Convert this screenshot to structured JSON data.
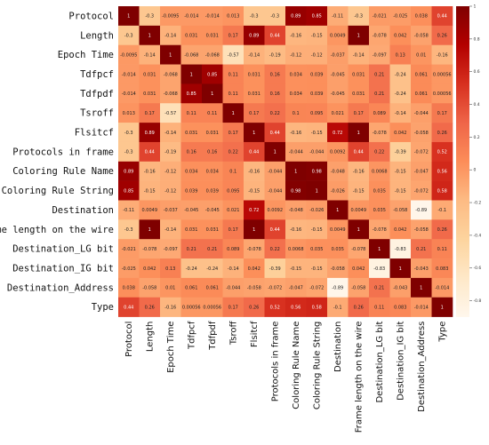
{
  "chart_data": {
    "type": "heatmap",
    "title": "",
    "labels": [
      "Protocol",
      "Length",
      "Epoch Time",
      "Tdfpcf",
      "Tdfpdf",
      "Tsroff",
      "Flsitcf",
      "Protocols in frame",
      "Coloring Rule Name",
      "Coloring Rule String",
      "Destination",
      "Frame length on the wire",
      "Destination_LG bit",
      "Destination_IG bit",
      "Destination_Address",
      "Type"
    ],
    "matrix": [
      [
        1,
        -0.3,
        -0.0095,
        -0.014,
        -0.014,
        0.013,
        -0.3,
        -0.3,
        0.89,
        0.85,
        -0.11,
        -0.3,
        -0.021,
        -0.025,
        0.038,
        0.44
      ],
      [
        -0.3,
        1,
        -0.14,
        0.031,
        0.031,
        0.17,
        0.89,
        0.44,
        -0.16,
        -0.15,
        0.0049,
        1,
        -0.078,
        0.042,
        -0.058,
        0.26
      ],
      [
        -0.0095,
        -0.14,
        1,
        -0.068,
        -0.068,
        -0.57,
        -0.14,
        -0.19,
        -0.12,
        -0.12,
        -0.037,
        -0.14,
        -0.097,
        0.13,
        0.01,
        -0.16
      ],
      [
        -0.014,
        0.031,
        -0.068,
        1,
        0.85,
        0.11,
        0.031,
        0.16,
        0.034,
        0.039,
        -0.045,
        0.031,
        0.21,
        -0.24,
        0.061,
        0.00056
      ],
      [
        -0.014,
        0.031,
        -0.068,
        0.85,
        1,
        0.11,
        0.031,
        0.16,
        0.034,
        0.039,
        -0.045,
        0.031,
        0.21,
        -0.24,
        0.061,
        0.00056
      ],
      [
        0.013,
        0.17,
        -0.57,
        0.11,
        0.11,
        1,
        0.17,
        0.22,
        0.1,
        0.095,
        0.021,
        0.17,
        0.089,
        -0.14,
        -0.044,
        0.17
      ],
      [
        -0.3,
        0.89,
        -0.14,
        0.031,
        0.031,
        0.17,
        1,
        0.44,
        -0.16,
        -0.15,
        0.72,
        1,
        -0.078,
        0.042,
        -0.058,
        0.26
      ],
      [
        -0.3,
        0.44,
        -0.19,
        0.16,
        0.16,
        0.22,
        0.44,
        1,
        -0.044,
        -0.044,
        0.0092,
        0.44,
        0.22,
        -0.39,
        -0.072,
        0.52
      ],
      [
        0.89,
        -0.16,
        -0.12,
        0.034,
        0.034,
        0.1,
        -0.16,
        -0.044,
        1,
        0.98,
        -0.048,
        -0.16,
        0.0068,
        -0.15,
        -0.047,
        0.56
      ],
      [
        0.85,
        -0.15,
        -0.12,
        0.039,
        0.039,
        0.095,
        -0.15,
        -0.044,
        0.98,
        1,
        -0.026,
        -0.15,
        0.035,
        -0.15,
        -0.072,
        0.58
      ],
      [
        -0.11,
        0.0049,
        -0.037,
        -0.045,
        -0.045,
        0.021,
        0.72,
        0.0092,
        -0.048,
        -0.026,
        1,
        0.0049,
        0.035,
        -0.058,
        -0.89,
        -0.1
      ],
      [
        -0.3,
        1,
        -0.14,
        0.031,
        0.031,
        0.17,
        1,
        0.44,
        -0.16,
        -0.15,
        0.0049,
        1,
        -0.078,
        0.042,
        -0.058,
        0.26
      ],
      [
        -0.021,
        -0.078,
        -0.097,
        0.21,
        0.21,
        0.089,
        -0.078,
        0.22,
        0.0068,
        0.035,
        0.035,
        -0.078,
        1,
        -0.83,
        0.21,
        0.11
      ],
      [
        -0.025,
        0.042,
        0.13,
        -0.24,
        -0.24,
        -0.14,
        0.042,
        -0.39,
        -0.15,
        -0.15,
        -0.058,
        0.042,
        -0.83,
        1,
        -0.043,
        0.083
      ],
      [
        0.038,
        -0.058,
        0.01,
        0.061,
        0.061,
        -0.044,
        -0.058,
        -0.072,
        -0.047,
        -0.072,
        -0.89,
        -0.058,
        0.21,
        -0.043,
        1,
        -0.014
      ],
      [
        0.44,
        0.26,
        -0.16,
        0.00056,
        0.00056,
        0.17,
        0.26,
        0.52,
        0.56,
        0.58,
        -0.1,
        0.26,
        0.11,
        0.083,
        -0.014,
        1
      ]
    ],
    "colorbar": {
      "min": -0.9,
      "max": 1.0,
      "ticks": [
        -0.8,
        -0.6,
        -0.4,
        -0.2,
        0,
        0.2,
        0.4,
        0.6,
        0.8,
        1.0
      ],
      "colormap": "OrRd",
      "color_low": "#fff7ec",
      "color_high": "#7f0000"
    },
    "grid": false,
    "legend": "colorbar-right"
  }
}
